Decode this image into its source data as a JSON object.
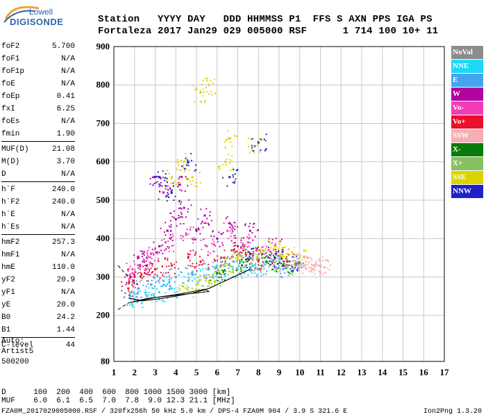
{
  "logo": {
    "top": "Lowell",
    "main": "DIGISONDE"
  },
  "header": {
    "line1": "Station   YYYY DAY   DDD HHMMSS P1  FFS S AXN PPS IGA PS",
    "line2": "Fortaleza 2017 Jan29 029 005000 RSF      1 714 100 10+ 11"
  },
  "params": {
    "group1": [
      {
        "k": "foF2",
        "v": "5.700"
      },
      {
        "k": "foF1",
        "v": "N/A"
      },
      {
        "k": "foF1p",
        "v": "N/A"
      },
      {
        "k": "foE",
        "v": "N/A"
      },
      {
        "k": "foEp",
        "v": "0.41"
      },
      {
        "k": "fxI",
        "v": "6.25"
      },
      {
        "k": "foEs",
        "v": "N/A"
      },
      {
        "k": "fmin",
        "v": "1.90"
      }
    ],
    "group2": [
      {
        "k": "MUF(D)",
        "v": "21.08"
      },
      {
        "k": "M(D)",
        "v": "3.70"
      },
      {
        "k": "D",
        "v": "N/A"
      }
    ],
    "group3": [
      {
        "k": "h`F",
        "v": "240.0"
      },
      {
        "k": "h`F2",
        "v": "240.0"
      },
      {
        "k": "h`E",
        "v": "N/A"
      },
      {
        "k": "h`Es",
        "v": "N/A"
      }
    ],
    "group4": [
      {
        "k": "hmF2",
        "v": "257.3"
      },
      {
        "k": "hmF1",
        "v": "N/A"
      },
      {
        "k": "hmE",
        "v": "110.0"
      },
      {
        "k": "yF2",
        "v": "20.9"
      },
      {
        "k": "yF1",
        "v": "N/A"
      },
      {
        "k": "yE",
        "v": "20.0"
      },
      {
        "k": "B0",
        "v": "24.2"
      },
      {
        "k": "B1",
        "v": "1.44"
      }
    ],
    "group5": [
      {
        "k": "C-level",
        "v": "44"
      }
    ]
  },
  "auto": {
    "line1": "Auto:",
    "line2": "Artist5",
    "line3": "500200"
  },
  "legend": [
    {
      "label": "NoVal",
      "color": "#8c8c8c"
    },
    {
      "label": "NNE",
      "color": "#1ed8f4"
    },
    {
      "label": "E",
      "color": "#45a4f0"
    },
    {
      "label": "W",
      "color": "#b0049c"
    },
    {
      "label": "Vo-",
      "color": "#f23cb6"
    },
    {
      "label": "Vo+",
      "color": "#e8102c"
    },
    {
      "label": "SSW",
      "color": "#f4b0b0"
    },
    {
      "label": "X-",
      "color": "#0a7a0a"
    },
    {
      "label": "X+",
      "color": "#88c060"
    },
    {
      "label": "SSE",
      "color": "#dcd400"
    },
    {
      "label": "NNW",
      "color": "#2020c8"
    }
  ],
  "footer": {
    "line1": "D      100  200  400  600  800 1000 1500 3000 [km]",
    "line2": "MUF    6.0  6.1  6.5  7.0  7.8  9.0 12.3 21.1 [MHz]",
    "line3": "FZA0M_2017029005000.RSF / 320fx256h 50 kHz 5.0 km / DPS-4 FZA0M 904 / 3.9 S 321.6 E",
    "line3_right": "Ion2Png 1.3.20"
  },
  "chart_data": {
    "type": "scatter",
    "xlim": [
      1,
      17
    ],
    "ylim": [
      80,
      900
    ],
    "xticks": [
      1,
      2,
      3,
      4,
      5,
      6,
      7,
      8,
      9,
      10,
      11,
      12,
      13,
      14,
      15,
      16,
      17
    ],
    "yticks": [
      80,
      200,
      300,
      400,
      500,
      600,
      700,
      800,
      900
    ],
    "grid": true,
    "legend_position": "right",
    "series": [
      {
        "name": "W",
        "color": "#b0049c",
        "points": [
          [
            1.8,
            300
          ],
          [
            2.2,
            350
          ],
          [
            2.6,
            330
          ],
          [
            3.2,
            380
          ],
          [
            3.6,
            420
          ],
          [
            4.0,
            450
          ],
          [
            4.4,
            480
          ],
          [
            5.0,
            420
          ],
          [
            5.4,
            460
          ],
          [
            6.0,
            400
          ],
          [
            6.6,
            440
          ],
          [
            7.0,
            380
          ],
          [
            7.6,
            420
          ],
          [
            8.2,
            360
          ],
          [
            8.8,
            380
          ],
          [
            3.0,
            560
          ],
          [
            3.4,
            520
          ],
          [
            4.2,
            540
          ]
        ]
      },
      {
        "name": "Vo-",
        "color": "#f23cb6",
        "points": [
          [
            1.9,
            320
          ],
          [
            2.4,
            340
          ],
          [
            2.8,
            360
          ],
          [
            3.5,
            390
          ],
          [
            4.5,
            410
          ],
          [
            5.5,
            380
          ],
          [
            6.5,
            420
          ],
          [
            7.5,
            390
          ],
          [
            8.5,
            370
          ]
        ]
      },
      {
        "name": "Vo+",
        "color": "#e8102c",
        "points": [
          [
            1.7,
            270
          ],
          [
            2.0,
            300
          ],
          [
            2.5,
            310
          ],
          [
            3.0,
            320
          ],
          [
            3.8,
            330
          ],
          [
            4.6,
            350
          ],
          [
            5.2,
            340
          ],
          [
            6.2,
            350
          ],
          [
            6.8,
            370
          ],
          [
            7.4,
            360
          ],
          [
            8.0,
            340
          ],
          [
            8.8,
            350
          ],
          [
            9.4,
            340
          ]
        ]
      },
      {
        "name": "E",
        "color": "#45a4f0",
        "points": [
          [
            1.8,
            250
          ],
          [
            2.2,
            270
          ],
          [
            2.8,
            280
          ],
          [
            3.4,
            290
          ],
          [
            4.0,
            300
          ],
          [
            4.8,
            310
          ],
          [
            5.6,
            320
          ],
          [
            6.2,
            330
          ],
          [
            6.8,
            340
          ],
          [
            7.4,
            330
          ],
          [
            8.0,
            320
          ],
          [
            8.6,
            340
          ],
          [
            9.2,
            320
          ],
          [
            9.8,
            330
          ]
        ]
      },
      {
        "name": "NNE",
        "color": "#1ed8f4",
        "points": [
          [
            2.0,
            240
          ],
          [
            2.6,
            250
          ],
          [
            3.2,
            260
          ],
          [
            3.8,
            270
          ],
          [
            4.6,
            290
          ],
          [
            5.4,
            300
          ],
          [
            6.0,
            310
          ],
          [
            7.0,
            320
          ],
          [
            7.8,
            330
          ]
        ]
      },
      {
        "name": "SSE",
        "color": "#dcd400",
        "points": [
          [
            4.5,
            270
          ],
          [
            5.0,
            280
          ],
          [
            5.6,
            290
          ],
          [
            6.4,
            330
          ],
          [
            7.0,
            350
          ],
          [
            7.6,
            360
          ],
          [
            8.2,
            370
          ],
          [
            8.8,
            380
          ],
          [
            9.4,
            360
          ],
          [
            10.0,
            350
          ],
          [
            3.8,
            560
          ],
          [
            4.4,
            600
          ],
          [
            4.8,
            560
          ],
          [
            5.2,
            780
          ],
          [
            5.6,
            800
          ],
          [
            6.4,
            600
          ],
          [
            6.6,
            660
          ],
          [
            7.8,
            640
          ]
        ]
      },
      {
        "name": "X+",
        "color": "#88c060",
        "points": [
          [
            5.8,
            300
          ],
          [
            6.6,
            330
          ],
          [
            7.4,
            340
          ],
          [
            8.2,
            350
          ],
          [
            9.0,
            340
          ],
          [
            9.6,
            330
          ]
        ]
      },
      {
        "name": "X-",
        "color": "#0a7a0a",
        "points": [
          [
            6.0,
            310
          ],
          [
            7.2,
            330
          ],
          [
            8.4,
            340
          ],
          [
            9.2,
            330
          ]
        ]
      },
      {
        "name": "NNW",
        "color": "#2020c8",
        "points": [
          [
            3.2,
            560
          ],
          [
            3.8,
            520
          ],
          [
            4.6,
            600
          ],
          [
            6.6,
            560
          ],
          [
            7.6,
            360
          ],
          [
            8.0,
            650
          ],
          [
            8.8,
            350
          ],
          [
            9.8,
            340
          ]
        ]
      },
      {
        "name": "SSW",
        "color": "#f4b0b0",
        "points": [
          [
            9.8,
            340
          ],
          [
            10.2,
            330
          ],
          [
            10.6,
            320
          ],
          [
            11.0,
            330
          ],
          [
            10.4,
            350
          ],
          [
            11.2,
            325
          ]
        ]
      }
    ]
  }
}
